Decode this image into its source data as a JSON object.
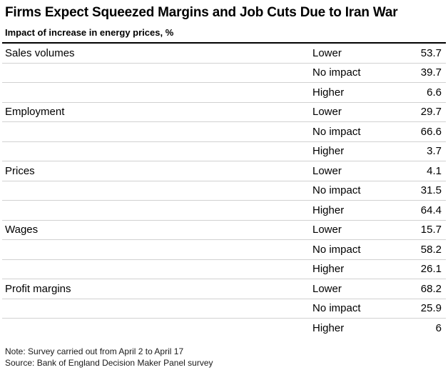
{
  "header": {
    "title": "Firms Expect Squeezed Margins and Job Cuts Due to Iran War",
    "subtitle": "Impact of increase in energy prices, %"
  },
  "chart_data": {
    "type": "table",
    "title": "Firms Expect Squeezed Margins and Job Cuts Due to Iran War",
    "subtitle": "Impact of increase in energy prices, %",
    "unit": "%",
    "categories": [
      "Sales volumes",
      "Employment",
      "Prices",
      "Wages",
      "Profit margins"
    ],
    "impact_levels": [
      "Lower",
      "No impact",
      "Higher"
    ],
    "series": [
      {
        "name": "Lower",
        "values": [
          53.7,
          29.7,
          4.1,
          15.7,
          68.2
        ]
      },
      {
        "name": "No impact",
        "values": [
          39.7,
          66.6,
          31.5,
          58.2,
          25.9
        ]
      },
      {
        "name": "Higher",
        "values": [
          6.6,
          3.7,
          64.4,
          26.1,
          6
        ]
      }
    ],
    "note": "Note: Survey carried out from April 2 to April 17",
    "source": "Source: Bank of England Decision Maker Panel survey"
  },
  "table": {
    "rows": [
      {
        "category": "Sales volumes",
        "impact": "Lower",
        "value": "53.7"
      },
      {
        "category": "",
        "impact": "No impact",
        "value": "39.7"
      },
      {
        "category": "",
        "impact": "Higher",
        "value": "6.6"
      },
      {
        "category": "Employment",
        "impact": "Lower",
        "value": "29.7"
      },
      {
        "category": "",
        "impact": "No impact",
        "value": "66.6"
      },
      {
        "category": "",
        "impact": "Higher",
        "value": "3.7"
      },
      {
        "category": "Prices",
        "impact": "Lower",
        "value": "4.1"
      },
      {
        "category": "",
        "impact": "No impact",
        "value": "31.5"
      },
      {
        "category": "",
        "impact": "Higher",
        "value": "64.4"
      },
      {
        "category": "Wages",
        "impact": "Lower",
        "value": "15.7"
      },
      {
        "category": "",
        "impact": "No impact",
        "value": "58.2"
      },
      {
        "category": "",
        "impact": "Higher",
        "value": "26.1"
      },
      {
        "category": "Profit margins",
        "impact": "Lower",
        "value": "68.2"
      },
      {
        "category": "",
        "impact": "No impact",
        "value": "25.9"
      },
      {
        "category": "",
        "impact": "Higher",
        "value": "6"
      }
    ]
  },
  "footer": {
    "note": "Note: Survey carried out from April 2 to April 17",
    "source": "Source: Bank of England Decision Maker Panel survey"
  },
  "colors": {
    "background": "#ffffff",
    "text": "#000000",
    "top_rule": "#000000",
    "row_divider": "#d1d1d1",
    "footer_text": "#1a1a1a"
  }
}
